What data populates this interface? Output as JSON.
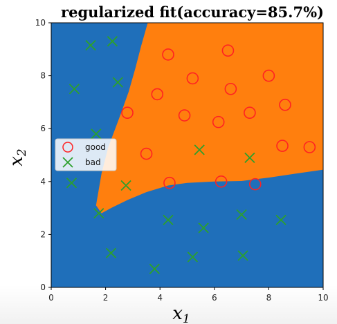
{
  "chart_data": {
    "type": "scatter",
    "title": "regularized fit(accuracy=85.7%)",
    "xlabel_main": "x",
    "xlabel_sub": "1",
    "ylabel_main": "x",
    "ylabel_sub": "2",
    "xlim": [
      0,
      10
    ],
    "ylim": [
      0,
      10
    ],
    "xticks": [
      0,
      2,
      4,
      6,
      8,
      10
    ],
    "yticks": [
      0,
      2,
      4,
      6,
      8,
      10
    ],
    "xtick_labels": [
      "0",
      "2",
      "4",
      "6",
      "8",
      "10"
    ],
    "ytick_labels": [
      "0",
      "2",
      "4",
      "6",
      "8",
      "10"
    ],
    "grid": false,
    "legend_position": "center-left",
    "background_regions": [
      {
        "class": "bad",
        "color": "#1f6fba"
      },
      {
        "class": "good",
        "color": "#ff7f0e"
      }
    ],
    "decision_boundary": {
      "upper": [
        [
          3.55,
          10
        ],
        [
          3.3,
          9.1
        ],
        [
          3.1,
          8.3
        ],
        [
          2.85,
          7.4
        ],
        [
          2.5,
          6.4
        ],
        [
          2.1,
          5.3
        ],
        [
          1.85,
          4.3
        ],
        [
          1.65,
          3.1
        ]
      ],
      "lower": [
        [
          1.65,
          3.1
        ],
        [
          1.85,
          2.8
        ],
        [
          2.2,
          3.0
        ],
        [
          2.8,
          3.3
        ],
        [
          3.5,
          3.6
        ],
        [
          4.3,
          3.85
        ],
        [
          5.0,
          3.95
        ],
        [
          6.0,
          4.0
        ],
        [
          7.0,
          4.02
        ],
        [
          8.0,
          4.15
        ],
        [
          9.0,
          4.3
        ],
        [
          10.0,
          4.45
        ]
      ]
    },
    "series": [
      {
        "name": "good",
        "marker": "circle",
        "color": "#ff2222",
        "points": [
          [
            4.3,
            8.8
          ],
          [
            6.5,
            8.95
          ],
          [
            5.2,
            7.9
          ],
          [
            8.0,
            8.0
          ],
          [
            3.9,
            7.3
          ],
          [
            6.6,
            7.5
          ],
          [
            2.8,
            6.6
          ],
          [
            4.9,
            6.5
          ],
          [
            7.3,
            6.6
          ],
          [
            8.6,
            6.9
          ],
          [
            6.15,
            6.25
          ],
          [
            3.5,
            5.05
          ],
          [
            8.5,
            5.35
          ],
          [
            9.5,
            5.3
          ],
          [
            4.35,
            3.95
          ],
          [
            6.25,
            4.0
          ],
          [
            7.5,
            3.9
          ]
        ]
      },
      {
        "name": "bad",
        "marker": "x",
        "color": "#2ca02c",
        "points": [
          [
            1.45,
            9.15
          ],
          [
            2.25,
            9.3
          ],
          [
            0.85,
            7.5
          ],
          [
            2.45,
            7.75
          ],
          [
            1.65,
            5.8
          ],
          [
            0.75,
            3.95
          ],
          [
            2.75,
            3.85
          ],
          [
            5.45,
            5.2
          ],
          [
            7.3,
            4.9
          ],
          [
            1.75,
            2.8
          ],
          [
            4.3,
            2.55
          ],
          [
            5.6,
            2.25
          ],
          [
            7.0,
            2.75
          ],
          [
            8.45,
            2.55
          ],
          [
            2.2,
            1.3
          ],
          [
            3.8,
            0.7
          ],
          [
            5.2,
            1.15
          ],
          [
            7.05,
            1.2
          ]
        ]
      }
    ],
    "legend": [
      {
        "label": "good",
        "marker": "circle",
        "color": "#ff2222"
      },
      {
        "label": "bad",
        "marker": "x",
        "color": "#2ca02c"
      }
    ]
  }
}
